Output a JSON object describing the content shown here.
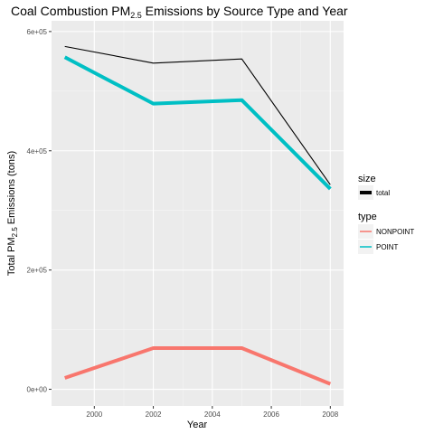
{
  "chart_data": {
    "type": "line",
    "title": {
      "prefix": "Coal Combustion PM",
      "sub": "2.5",
      "suffix": " Emissions by Source Type and Year"
    },
    "xlabel": "Year",
    "ylabel": {
      "prefix": "Total PM",
      "sub": "2.5",
      "suffix": " Emissions (tons)"
    },
    "x_ticks": [
      2000,
      2002,
      2004,
      2006,
      2008
    ],
    "x_tick_labels": [
      "2000",
      "2002",
      "2004",
      "2006",
      "2008"
    ],
    "y_ticks": [
      0,
      200000,
      400000,
      600000
    ],
    "y_tick_labels": [
      "0e+00",
      "2e+05",
      "4e+05",
      "6e+05"
    ],
    "xlim": [
      1998.55,
      2008.45
    ],
    "ylim": [
      -28000,
      618000
    ],
    "grid": true,
    "legend_position": "right",
    "x": [
      1999,
      2002,
      2005,
      2008
    ],
    "series": [
      {
        "name": "total",
        "values": [
          575000,
          547000,
          554000,
          343000
        ],
        "color": "#000000",
        "role": "size"
      },
      {
        "name": "POINT",
        "values": [
          557000,
          479000,
          485000,
          336000
        ],
        "color": "#00bfc4",
        "role": "type"
      },
      {
        "name": "NONPOINT",
        "values": [
          19000,
          69000,
          69000,
          9000
        ],
        "color": "#f8766d",
        "role": "type"
      }
    ],
    "legend": {
      "size_title": "size",
      "size_items": [
        "total"
      ],
      "type_title": "type",
      "type_items": [
        "NONPOINT",
        "POINT"
      ]
    }
  }
}
